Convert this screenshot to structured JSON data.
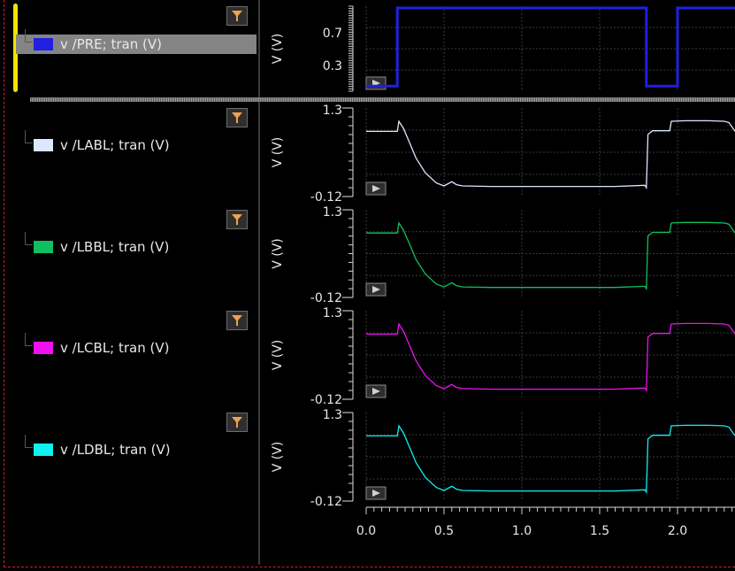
{
  "traces": [
    {
      "label": "v /PRE; tran (V)",
      "color": "#2020e0",
      "selected": true,
      "icon": "filter-icon"
    },
    {
      "label": "v /LABL; tran (V)",
      "color": "#dce8ff",
      "selected": false,
      "icon": "filter-icon"
    },
    {
      "label": "v /LBBL; tran (V)",
      "color": "#10c060",
      "selected": false,
      "icon": "filter-icon"
    },
    {
      "label": "v /LCBL; tran (V)",
      "color": "#f010f0",
      "selected": false,
      "icon": "filter-icon"
    },
    {
      "label": "v /LDBL; tran (V)",
      "color": "#10f0f0",
      "selected": false,
      "icon": "filter-icon"
    }
  ],
  "strips": [
    {
      "ylabel": "V (V)",
      "ticks": [
        "0.7",
        "0.3"
      ],
      "tick_values": [
        0.7,
        0.3
      ],
      "range": [
        0,
        1.0
      ],
      "play_icon": "play-icon"
    },
    {
      "ylabel": "V (V)",
      "ticks": [
        "1.3",
        "-0.12"
      ],
      "tick_values": [
        1.3,
        -0.12
      ],
      "range": [
        -0.12,
        1.3
      ],
      "play_icon": "play-icon"
    },
    {
      "ylabel": "V (V)",
      "ticks": [
        "1.3",
        "-0.12"
      ],
      "tick_values": [
        1.3,
        -0.12
      ],
      "range": [
        -0.12,
        1.3
      ],
      "play_icon": "play-icon"
    },
    {
      "ylabel": "V (V)",
      "ticks": [
        "1.3",
        "-0.12"
      ],
      "tick_values": [
        1.3,
        -0.12
      ],
      "range": [
        -0.12,
        1.3
      ],
      "play_icon": "play-icon"
    },
    {
      "ylabel": "V (V)",
      "ticks": [
        "1.3",
        "-0.12"
      ],
      "tick_values": [
        1.3,
        -0.12
      ],
      "range": [
        -0.12,
        1.3
      ],
      "play_icon": "play-icon"
    }
  ],
  "chart_data": {
    "type": "line",
    "grid": true,
    "x_ticks": [
      "0.0",
      "0.5",
      "1.0",
      "1.5",
      "2.0"
    ],
    "x_tick_values": [
      0,
      0.5,
      1.0,
      1.5,
      2.0
    ],
    "xlim": [
      0,
      2.37
    ],
    "series": [
      {
        "name": "v /PRE; tran (V)",
        "strip": 0,
        "x": [
          0,
          0.1,
          0.2,
          0.2,
          1.8,
          1.8,
          2.0,
          2.0,
          2.37
        ],
        "y": [
          0.05,
          0.05,
          0.05,
          1.0,
          1.0,
          0.05,
          0.05,
          1.0,
          1.0
        ]
      },
      {
        "name": "v /LABL; tran (V)",
        "strip": 1,
        "x": [
          0,
          0.1,
          0.2,
          0.21,
          0.24,
          0.28,
          0.32,
          0.38,
          0.45,
          0.5,
          0.55,
          0.58,
          0.62,
          0.8,
          1.2,
          1.6,
          1.79,
          1.8,
          1.81,
          1.84,
          1.85,
          1.9,
          1.95,
          1.96,
          2.05,
          2.2,
          2.3,
          2.33,
          2.37
        ],
        "y": [
          0.95,
          0.95,
          0.95,
          1.12,
          1.0,
          0.75,
          0.5,
          0.25,
          0.08,
          0.03,
          0.1,
          0.05,
          0.03,
          0.02,
          0.02,
          0.02,
          0.04,
          0.0,
          0.9,
          0.96,
          0.96,
          0.96,
          0.96,
          1.12,
          1.13,
          1.13,
          1.12,
          1.1,
          0.95
        ]
      },
      {
        "name": "v /LBBL; tran (V)",
        "strip": 2,
        "x": [
          0,
          0.1,
          0.2,
          0.21,
          0.24,
          0.28,
          0.32,
          0.38,
          0.45,
          0.5,
          0.55,
          0.58,
          0.62,
          0.8,
          1.2,
          1.6,
          1.79,
          1.8,
          1.81,
          1.84,
          1.85,
          1.9,
          1.95,
          1.96,
          2.05,
          2.2,
          2.3,
          2.33,
          2.37
        ],
        "y": [
          0.95,
          0.95,
          0.95,
          1.12,
          1.0,
          0.75,
          0.5,
          0.25,
          0.08,
          0.03,
          0.1,
          0.05,
          0.03,
          0.02,
          0.02,
          0.02,
          0.04,
          0.0,
          0.9,
          0.96,
          0.96,
          0.96,
          0.96,
          1.12,
          1.13,
          1.13,
          1.12,
          1.1,
          0.95
        ]
      },
      {
        "name": "v /LCBL; tran (V)",
        "strip": 3,
        "x": [
          0,
          0.1,
          0.2,
          0.21,
          0.24,
          0.28,
          0.32,
          0.38,
          0.45,
          0.5,
          0.55,
          0.58,
          0.62,
          0.8,
          1.2,
          1.6,
          1.79,
          1.8,
          1.81,
          1.84,
          1.85,
          1.9,
          1.95,
          1.96,
          2.05,
          2.2,
          2.3,
          2.33,
          2.37
        ],
        "y": [
          0.95,
          0.95,
          0.95,
          1.12,
          1.0,
          0.75,
          0.5,
          0.25,
          0.08,
          0.03,
          0.1,
          0.05,
          0.03,
          0.02,
          0.02,
          0.02,
          0.04,
          0.0,
          0.9,
          0.96,
          0.96,
          0.96,
          0.96,
          1.12,
          1.13,
          1.13,
          1.12,
          1.1,
          0.95
        ]
      },
      {
        "name": "v /LDBL; tran (V)",
        "strip": 4,
        "x": [
          0,
          0.1,
          0.2,
          0.21,
          0.24,
          0.28,
          0.32,
          0.38,
          0.45,
          0.5,
          0.55,
          0.58,
          0.62,
          0.8,
          1.2,
          1.6,
          1.79,
          1.8,
          1.81,
          1.84,
          1.85,
          1.9,
          1.95,
          1.96,
          2.05,
          2.2,
          2.3,
          2.33,
          2.37
        ],
        "y": [
          0.95,
          0.95,
          0.95,
          1.12,
          1.0,
          0.75,
          0.5,
          0.25,
          0.08,
          0.03,
          0.1,
          0.05,
          0.03,
          0.02,
          0.02,
          0.02,
          0.04,
          0.0,
          0.9,
          0.96,
          0.96,
          0.96,
          0.96,
          1.12,
          1.13,
          1.13,
          1.12,
          1.1,
          0.95
        ]
      }
    ]
  }
}
